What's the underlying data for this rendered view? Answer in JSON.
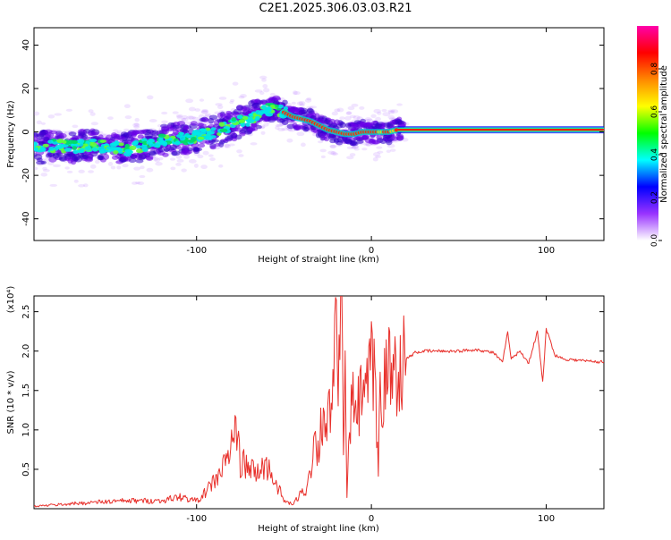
{
  "figure": {
    "title": "C2E1.2025.306.03.03.R21"
  },
  "chart_data": [
    {
      "type": "heatmap",
      "name": "spectrogram",
      "xlabel": "Height of straight line (km)",
      "ylabel": "Frequency (Hz)",
      "xlim": [
        -193,
        133
      ],
      "ylim": [
        -50,
        48
      ],
      "x_ticks": [
        -100,
        0,
        100
      ],
      "y_ticks": [
        -40,
        -20,
        0,
        20,
        40
      ],
      "ridge": {
        "x": [
          -193,
          -180,
          -170,
          -160,
          -150,
          -140,
          -130,
          -120,
          -110,
          -100,
          -90,
          -80,
          -70,
          -60,
          -55,
          -50,
          -45,
          -40,
          -35,
          -30,
          -25,
          -20,
          -15,
          -10,
          -5,
          0,
          5,
          10,
          15,
          133
        ],
        "y": [
          -8,
          -6,
          -7,
          -6,
          -7,
          -8,
          -6,
          -4,
          -3,
          -2,
          0,
          3,
          6,
          10,
          11,
          9,
          7,
          6,
          5,
          3,
          1,
          0,
          -1,
          -1,
          0,
          0,
          0,
          0,
          1,
          1
        ]
      },
      "colorbar": {
        "label": "Normalized spectral amplitude",
        "range": [
          0,
          1
        ],
        "ticks": [
          "0.0",
          "0.2",
          "0.4",
          "0.6",
          "0.8"
        ],
        "colors": [
          "#ffffff",
          "#9933ff",
          "#0000ff",
          "#00ffff",
          "#00ff00",
          "#ffff00",
          "#ff8800",
          "#ff0000",
          "#ff00aa"
        ]
      }
    },
    {
      "type": "line",
      "name": "snr",
      "xlabel": "Height of straight line (km)",
      "ylabel": "SNR (10 * v/v)",
      "scale_label": "(x10⁴)",
      "xlim": [
        -193,
        133
      ],
      "ylim": [
        0,
        2.7
      ],
      "x_ticks": [
        -100,
        0,
        100
      ],
      "y_ticks": [
        "0.5",
        "1.0",
        "1.5",
        "2.0",
        "2.5"
      ],
      "color": "#e8302b",
      "x": [
        -193,
        -180,
        -160,
        -140,
        -120,
        -110,
        -100,
        -95,
        -90,
        -85,
        -80,
        -78,
        -75,
        -70,
        -65,
        -60,
        -55,
        -50,
        -45,
        -40,
        -37,
        -35,
        -33,
        -30,
        -28,
        -25,
        -22,
        -20,
        -18,
        -17,
        -16,
        -15,
        -14,
        -12,
        -10,
        -8,
        -5,
        -3,
        0,
        2,
        4,
        5,
        6,
        8,
        10,
        15,
        20,
        25,
        30,
        40,
        50,
        60,
        70,
        75,
        78,
        80,
        85,
        90,
        95,
        98,
        100,
        105,
        110,
        120,
        133
      ],
      "y": [
        0.03,
        0.05,
        0.08,
        0.1,
        0.1,
        0.15,
        0.1,
        0.2,
        0.35,
        0.5,
        0.8,
        1.05,
        0.6,
        0.5,
        0.45,
        0.55,
        0.35,
        0.1,
        0.05,
        0.2,
        0.25,
        0.45,
        0.9,
        0.8,
        1.2,
        1.1,
        1.4,
        2.3,
        1.6,
        2.7,
        0.8,
        1.5,
        0.2,
        1.1,
        1.4,
        1.2,
        1.5,
        1.4,
        1.8,
        1.6,
        0.45,
        1.65,
        1.5,
        1.6,
        1.75,
        1.8,
        1.9,
        1.98,
        2.0,
        2.0,
        2.0,
        2.02,
        1.98,
        1.85,
        2.25,
        1.9,
        2.0,
        1.85,
        2.25,
        1.6,
        2.28,
        1.95,
        1.9,
        1.88,
        1.86
      ]
    }
  ]
}
